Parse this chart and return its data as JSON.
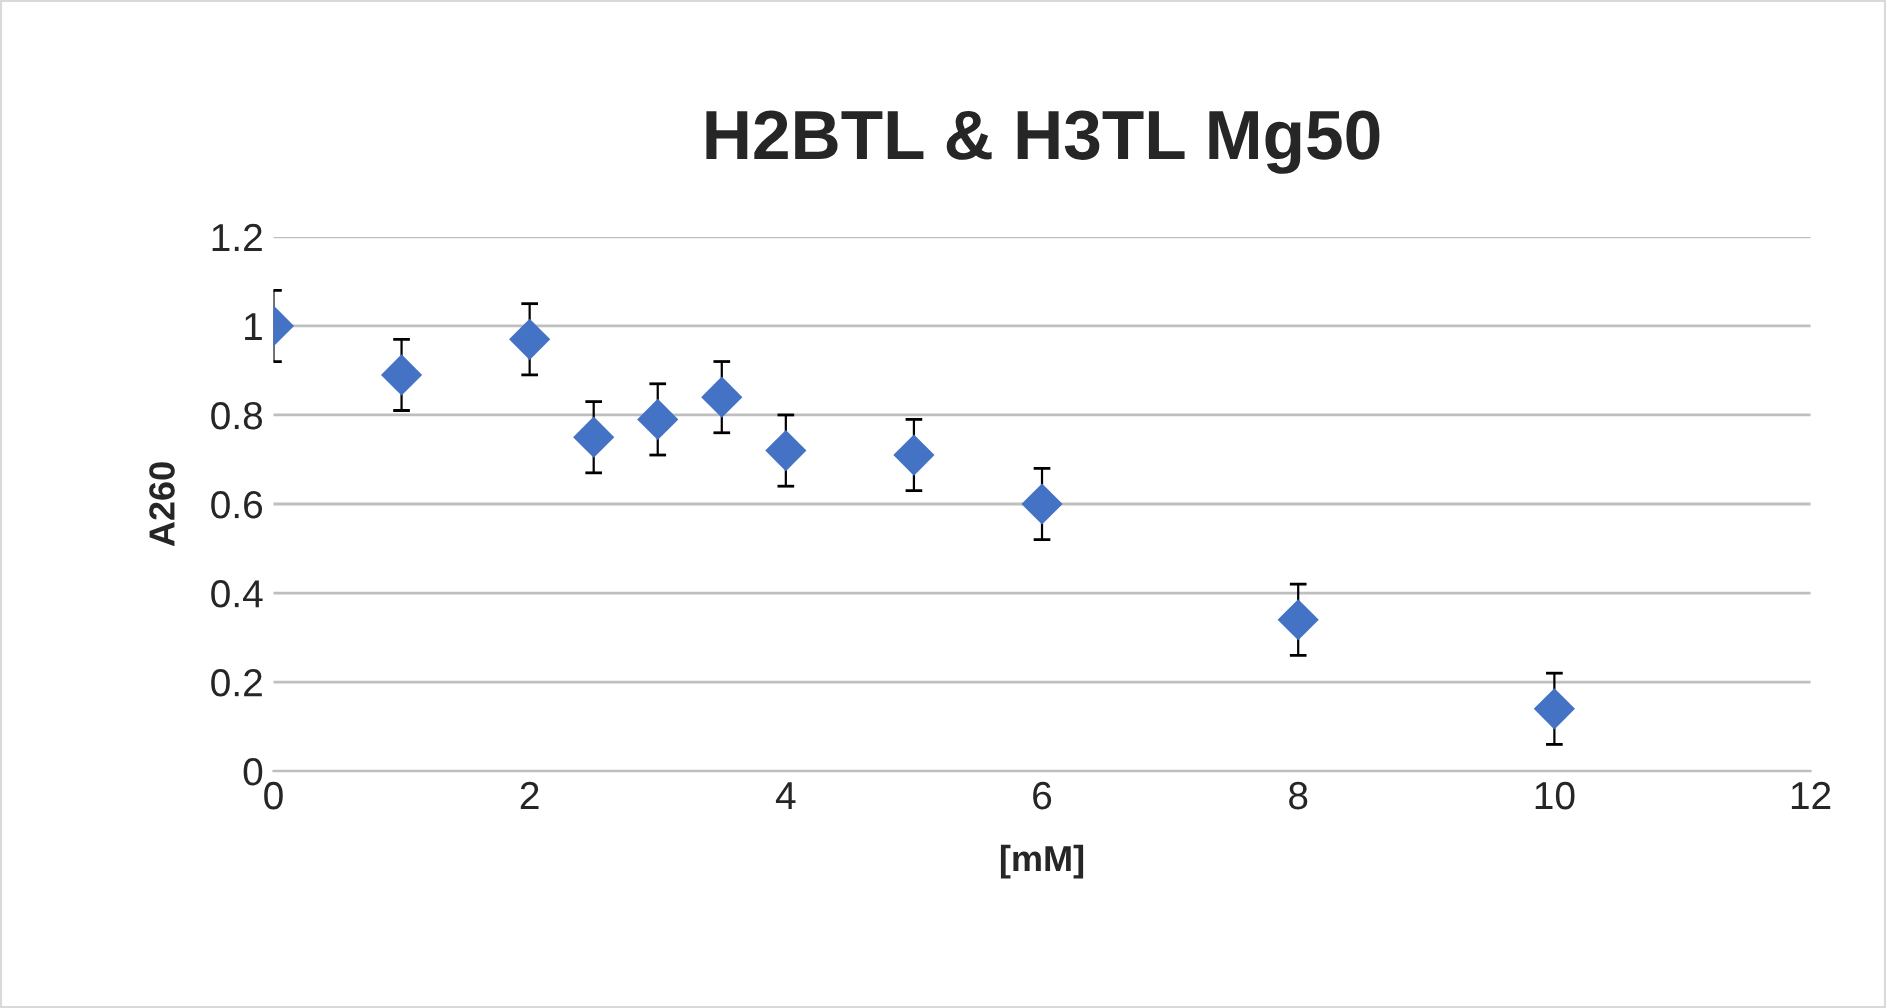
{
  "chart_data": {
    "type": "scatter",
    "title": "H2BTL & H3TL Mg50",
    "xlabel": "[mM]",
    "ylabel": "A260",
    "x": [
      0,
      1,
      2,
      2.5,
      3,
      3.5,
      4,
      5,
      6,
      8,
      10
    ],
    "series": [
      {
        "color": "#4472c4",
        "values": [
          1.0,
          0.89,
          0.97,
          0.75,
          0.79,
          0.84,
          0.72,
          0.71,
          0.6,
          0.34,
          0.14
        ],
        "errors": [
          0.08,
          0.08,
          0.08,
          0.08,
          0.08,
          0.08,
          0.08,
          0.08,
          0.08,
          0.08,
          0.08
        ]
      }
    ],
    "xlim": [
      0,
      12
    ],
    "xticks": [
      0,
      2,
      4,
      6,
      8,
      10,
      12
    ],
    "ylim": [
      0,
      1.2
    ],
    "yticks": [
      0,
      0.2,
      0.4,
      0.6,
      0.8,
      1,
      1.2
    ],
    "grid": "y",
    "marker": "diamond",
    "legend": false
  }
}
